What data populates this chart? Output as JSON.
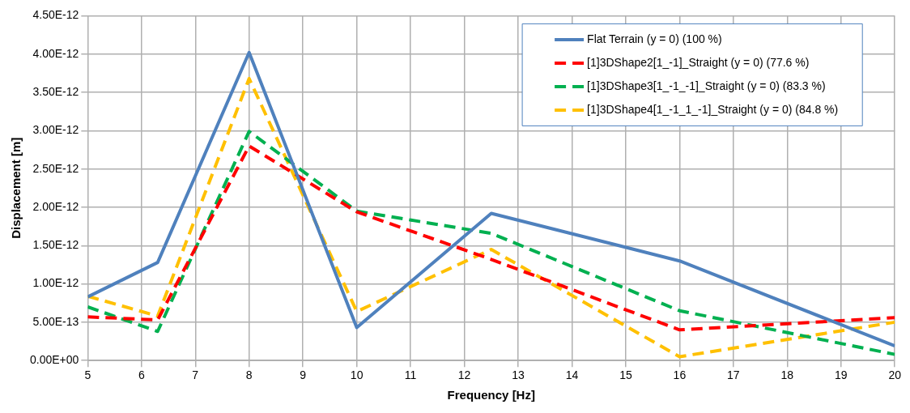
{
  "chart_data": {
    "type": "line",
    "xlabel": "Frequency [Hz]",
    "ylabel": "Displacement [m]",
    "x": [
      5,
      6.3,
      8,
      10,
      12.5,
      16,
      20
    ],
    "series": [
      {
        "name": "Flat Terrain (y = 0) (100 %)",
        "color": "#4f81bd",
        "line_style": "solid",
        "values": [
          8.3e-13,
          1.28e-12,
          4.02e-12,
          4.3e-13,
          1.92e-12,
          1.3e-12,
          1.9e-13
        ]
      },
      {
        "name": "[1]3DShape2[1_-1]_Straight (y = 0) (77.6 %)",
        "color": "#ff0000",
        "line_style": "dashed",
        "values": [
          5.7e-13,
          5.3e-13,
          2.8e-12,
          1.94e-12,
          1.32e-12,
          4e-13,
          5.6e-13
        ]
      },
      {
        "name": "[1]3DShape3[1_-1_-1]_Straight (y = 0) (83.3 %)",
        "color": "#00b050",
        "line_style": "dashed",
        "values": [
          7e-13,
          3.8e-13,
          2.99e-12,
          1.95e-12,
          1.66e-12,
          6.5e-13,
          8e-14
        ]
      },
      {
        "name": "[1]3DShape4[1_-1_1_-1]_Straight (y = 0) (84.8 %)",
        "color": "#ffc000",
        "line_style": "dashed",
        "values": [
          8.4e-13,
          5.8e-13,
          3.68e-12,
          6.4e-13,
          1.45e-12,
          5e-14,
          5e-13
        ]
      }
    ],
    "xlim": [
      5,
      20
    ],
    "xticks": [
      5,
      6,
      7,
      8,
      9,
      10,
      11,
      12,
      13,
      14,
      15,
      16,
      17,
      18,
      19,
      20
    ],
    "ylim": [
      0,
      4.5e-12
    ],
    "yticks": [
      {
        "value": 0,
        "label": "0.00E+00"
      },
      {
        "value": 5e-13,
        "label": "5.00E-13"
      },
      {
        "value": 1e-12,
        "label": "1.00E-12"
      },
      {
        "value": 1.5e-12,
        "label": "1.50E-12"
      },
      {
        "value": 2e-12,
        "label": "2.00E-12"
      },
      {
        "value": 2.5e-12,
        "label": "2.50E-12"
      },
      {
        "value": 3e-12,
        "label": "3.00E-12"
      },
      {
        "value": 3.5e-12,
        "label": "3.50E-12"
      },
      {
        "value": 4e-12,
        "label": "4.00E-12"
      },
      {
        "value": 4.5e-12,
        "label": "4.50E-12"
      }
    ],
    "grid": true,
    "legend": "top right",
    "marker": "none"
  }
}
